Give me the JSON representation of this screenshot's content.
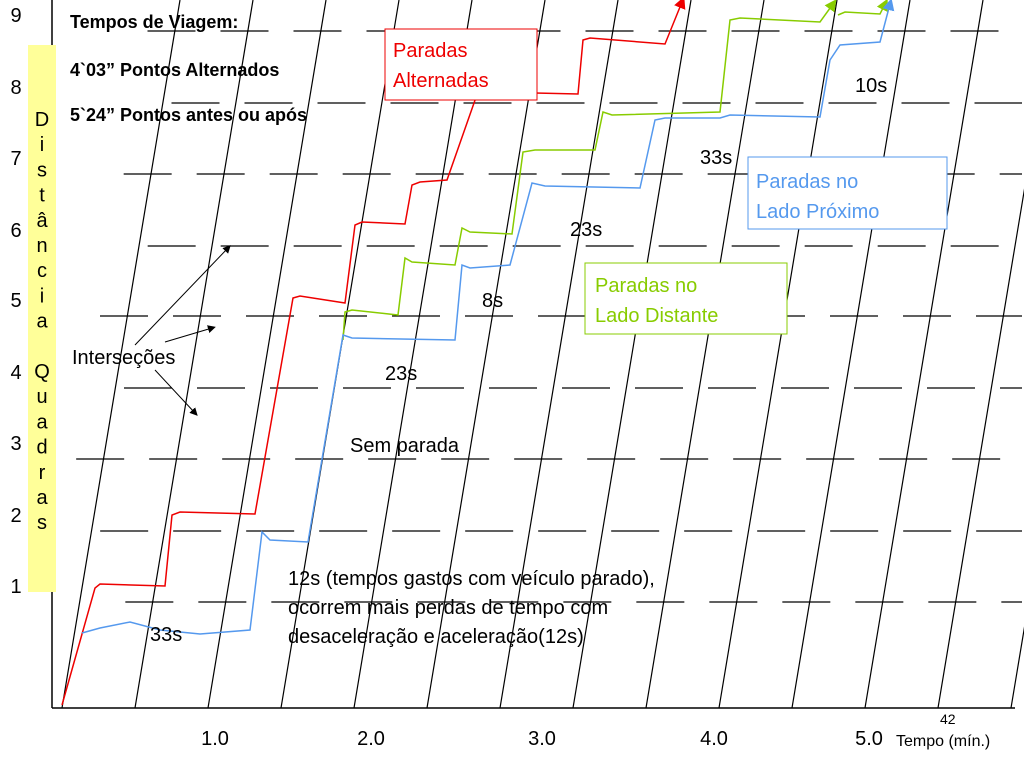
{
  "title_block": {
    "heading": "Tempos de Viagem:",
    "line1": "4`03” Pontos Alternados",
    "line2": "5`24” Pontos antes ou após"
  },
  "y_axis": {
    "label": "Distância Quadras",
    "ticks": [
      "1",
      "2",
      "3",
      "4",
      "5",
      "6",
      "7",
      "8",
      "9"
    ]
  },
  "x_axis": {
    "label": "Tempo (mín.)",
    "ticks": [
      "1.0",
      "2.0",
      "3.0",
      "4.0",
      "5.0"
    ]
  },
  "page_number": "42",
  "legend": {
    "red": [
      "Paradas",
      "Alternadas"
    ],
    "blue": [
      "Paradas no",
      "Lado Próximo"
    ],
    "green": [
      "Paradas no",
      "Lado Distante"
    ]
  },
  "annotations": {
    "t10s": "10s",
    "t33s_top": "33s",
    "t23s_mid": "23s",
    "t8s": "8s",
    "t23s_low": "23s",
    "no_stop": "Sem parada",
    "intersections": "Interseções",
    "t33s_bottom": "33s",
    "note": [
      "12s (tempos gastos com veículo parado),",
      "ocorrem mais perdas de tempo com",
      "desaceleração e aceleração(12s)"
    ]
  }
}
